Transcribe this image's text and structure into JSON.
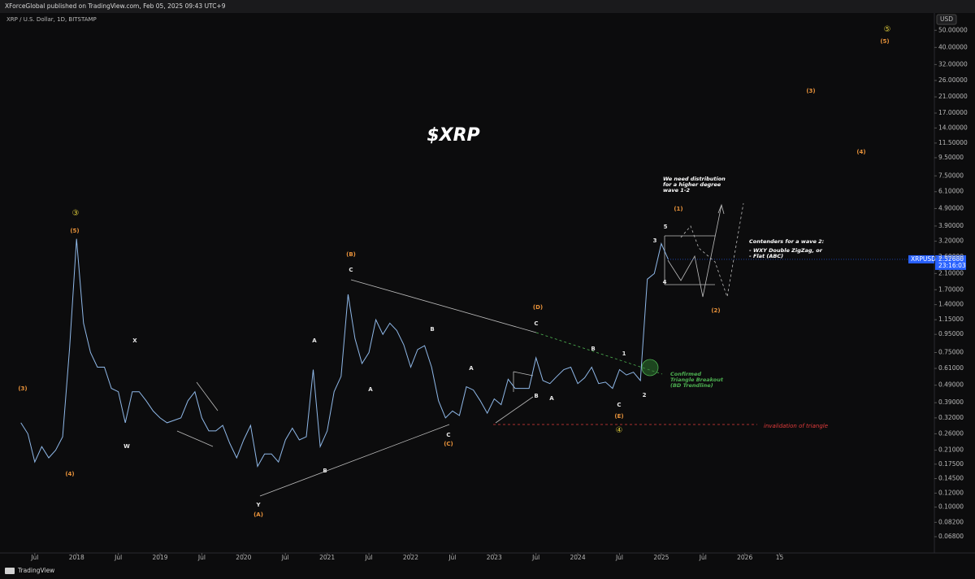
{
  "header": "XForceGlobal published on TradingView.com, Feb 05, 2025 09:43 UTC+9",
  "symbol_info": "XRP / U.S. Dollar, 1D, BITSTAMP",
  "currency": "USD",
  "footer": "TradingView",
  "price_tag": {
    "symbol": "XRPUSD",
    "price": {
      "value": 2.5268,
      "label": "2.52680"
    },
    "countdown": "23:16:03"
  },
  "chart_data": {
    "type": "line",
    "title": "$XRP",
    "log_scale": true,
    "grid": false,
    "xlim": [
      "2017-02",
      "2028-04"
    ],
    "ylim": [
      0.055,
      54
    ],
    "xticks": [
      {
        "value": "2017-07",
        "label": "Jul"
      },
      {
        "value": "2018-01",
        "label": "2018"
      },
      {
        "value": "2018-07",
        "label": "Jul"
      },
      {
        "value": "2019-01",
        "label": "2019"
      },
      {
        "value": "2019-07",
        "label": "Jul"
      },
      {
        "value": "2020-01",
        "label": "2020"
      },
      {
        "value": "2020-07",
        "label": "Jul"
      },
      {
        "value": "2021-01",
        "label": "2021"
      },
      {
        "value": "2021-07",
        "label": "Jul"
      },
      {
        "value": "2022-01",
        "label": "2022"
      },
      {
        "value": "2022-07",
        "label": "Jul"
      },
      {
        "value": "2023-01",
        "label": "2023"
      },
      {
        "value": "2023-07",
        "label": "Jul"
      },
      {
        "value": "2024-01",
        "label": "2024"
      },
      {
        "value": "2024-07",
        "label": "Jul"
      },
      {
        "value": "2025-01",
        "label": "2025"
      },
      {
        "value": "2025-07",
        "label": "Jul"
      },
      {
        "value": "2026-01",
        "label": "2026"
      },
      {
        "value": "2026-06",
        "label": "15"
      }
    ],
    "yticks": [
      {
        "value": 0.068,
        "label": "0.06800"
      },
      {
        "value": 0.082,
        "label": "0.08200"
      },
      {
        "value": 0.1,
        "label": "0.10000"
      },
      {
        "value": 0.12,
        "label": "0.12000"
      },
      {
        "value": 0.145,
        "label": "0.14500"
      },
      {
        "value": 0.175,
        "label": "0.17500"
      },
      {
        "value": 0.21,
        "label": "0.21000"
      },
      {
        "value": 0.26,
        "label": "0.26000"
      },
      {
        "value": 0.32,
        "label": "0.32000"
      },
      {
        "value": 0.39,
        "label": "0.39000"
      },
      {
        "value": 0.49,
        "label": "0.49000"
      },
      {
        "value": 0.61,
        "label": "0.61000"
      },
      {
        "value": 0.75,
        "label": "0.75000"
      },
      {
        "value": 0.95,
        "label": "0.95000"
      },
      {
        "value": 1.15,
        "label": "1.15000"
      },
      {
        "value": 1.4,
        "label": "1.40000"
      },
      {
        "value": 1.7,
        "label": "1.70000"
      },
      {
        "value": 2.1,
        "label": "2.10000"
      },
      {
        "value": 2.6,
        "label": "2.60000"
      },
      {
        "value": 3.2,
        "label": "3.20000"
      },
      {
        "value": 3.9,
        "label": "3.90000"
      },
      {
        "value": 4.9,
        "label": "4.90000"
      },
      {
        "value": 6.1,
        "label": "6.10000"
      },
      {
        "value": 7.5,
        "label": "7.50000"
      },
      {
        "value": 9.5,
        "label": "9.50000"
      },
      {
        "value": 11.5,
        "label": "11.50000"
      },
      {
        "value": 14,
        "label": "14.00000"
      },
      {
        "value": 17,
        "label": "17.00000"
      },
      {
        "value": 21,
        "label": "21.00000"
      },
      {
        "value": 26,
        "label": "26.00000"
      },
      {
        "value": 32,
        "label": "32.00000"
      },
      {
        "value": 40,
        "label": "40.00000"
      },
      {
        "value": 50,
        "label": "50.00000"
      }
    ],
    "series": [
      {
        "name": "XRPUSD",
        "color": "#8fb8e8",
        "x": [
          "2017-05",
          "2017-06",
          "2017-07",
          "2017-08",
          "2017-09",
          "2017-10",
          "2017-11",
          "2017-12",
          "2018-01",
          "2018-02",
          "2018-03",
          "2018-04",
          "2018-05",
          "2018-06",
          "2018-07",
          "2018-08",
          "2018-09",
          "2018-10",
          "2018-11",
          "2018-12",
          "2019-01",
          "2019-02",
          "2019-03",
          "2019-04",
          "2019-05",
          "2019-06",
          "2019-07",
          "2019-08",
          "2019-09",
          "2019-10",
          "2019-11",
          "2019-12",
          "2020-01",
          "2020-02",
          "2020-03",
          "2020-04",
          "2020-05",
          "2020-06",
          "2020-07",
          "2020-08",
          "2020-09",
          "2020-10",
          "2020-11",
          "2020-12",
          "2021-01",
          "2021-02",
          "2021-03",
          "2021-04",
          "2021-05",
          "2021-06",
          "2021-07",
          "2021-08",
          "2021-09",
          "2021-10",
          "2021-11",
          "2021-12",
          "2022-01",
          "2022-02",
          "2022-03",
          "2022-04",
          "2022-05",
          "2022-06",
          "2022-07",
          "2022-08",
          "2022-09",
          "2022-10",
          "2022-11",
          "2022-12",
          "2023-01",
          "2023-02",
          "2023-03",
          "2023-04",
          "2023-05",
          "2023-06",
          "2023-07",
          "2023-08",
          "2023-09",
          "2023-10",
          "2023-11",
          "2023-12",
          "2024-01",
          "2024-02",
          "2024-03",
          "2024-04",
          "2024-05",
          "2024-06",
          "2024-07",
          "2024-08",
          "2024-09",
          "2024-10",
          "2024-11",
          "2024-12",
          "2025-01",
          "2025-02"
        ],
        "values": [
          0.3,
          0.26,
          0.18,
          0.22,
          0.19,
          0.21,
          0.25,
          0.8,
          3.3,
          1.1,
          0.75,
          0.62,
          0.62,
          0.47,
          0.45,
          0.3,
          0.45,
          0.45,
          0.4,
          0.35,
          0.32,
          0.3,
          0.31,
          0.32,
          0.4,
          0.45,
          0.32,
          0.27,
          0.27,
          0.29,
          0.23,
          0.19,
          0.24,
          0.29,
          0.17,
          0.2,
          0.2,
          0.18,
          0.24,
          0.28,
          0.24,
          0.25,
          0.6,
          0.22,
          0.27,
          0.45,
          0.55,
          1.6,
          0.9,
          0.65,
          0.75,
          1.15,
          0.95,
          1.1,
          1.0,
          0.83,
          0.62,
          0.78,
          0.82,
          0.62,
          0.4,
          0.32,
          0.35,
          0.33,
          0.48,
          0.46,
          0.4,
          0.34,
          0.41,
          0.38,
          0.53,
          0.47,
          0.47,
          0.47,
          0.7,
          0.52,
          0.5,
          0.55,
          0.6,
          0.62,
          0.5,
          0.54,
          0.62,
          0.5,
          0.51,
          0.47,
          0.6,
          0.56,
          0.58,
          0.52,
          1.95,
          2.1,
          3.1,
          2.53
        ]
      }
    ],
    "annotations": {
      "distribution": [
        "We need distribution",
        "for a higher degree",
        "wave 1-2"
      ],
      "contenders": [
        "Contenders for a wave 2:",
        "- WXY Double ZigZag, or",
        "- Flat (ABC)"
      ],
      "breakout": [
        "Confirmed",
        "Triangle Breakout",
        "(BD Trendline)"
      ],
      "invalidation": "invalidation of triangle"
    },
    "wave_labels": [
      "③",
      "(5)",
      "(3)",
      "(4)",
      "X",
      "W",
      "Y",
      "(A)",
      "A",
      "B",
      "(B)",
      "C",
      "A",
      "B",
      "A",
      "C",
      "(C)",
      "(D)",
      "C",
      "B",
      "A",
      "B",
      "1",
      "C",
      "(E)",
      "④",
      "2",
      "3",
      "5",
      "4",
      "(1)",
      "(2)",
      "(3)",
      "(4)",
      "(5)",
      "⑤"
    ]
  }
}
